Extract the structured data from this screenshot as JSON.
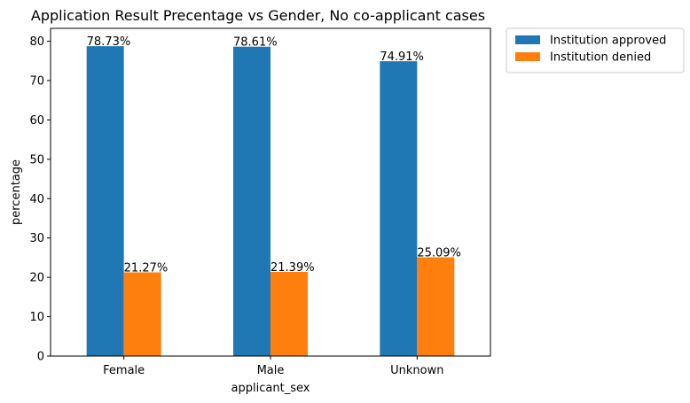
{
  "chart_data": {
    "type": "bar",
    "title": "Application Result Precentage vs Gender, No co-applicant cases",
    "xlabel": "applicant_sex",
    "ylabel": "percentage",
    "categories": [
      "Female",
      "Male",
      "Unknown"
    ],
    "ylim": [
      0,
      83.27
    ],
    "yticks": [
      0,
      10,
      20,
      30,
      40,
      50,
      60,
      70,
      80
    ],
    "grid": false,
    "legend_position": "outside-top-right",
    "series": [
      {
        "name": "Institution approved",
        "color": "#1f77b4",
        "values": [
          78.73,
          78.61,
          74.91
        ],
        "data_labels": [
          "78.73%",
          "78.61%",
          "74.91%"
        ]
      },
      {
        "name": "Institution denied",
        "color": "#ff7f0e",
        "values": [
          21.27,
          21.39,
          25.09
        ],
        "data_labels": [
          "21.27%",
          "21.39%",
          "25.09%"
        ]
      }
    ]
  }
}
